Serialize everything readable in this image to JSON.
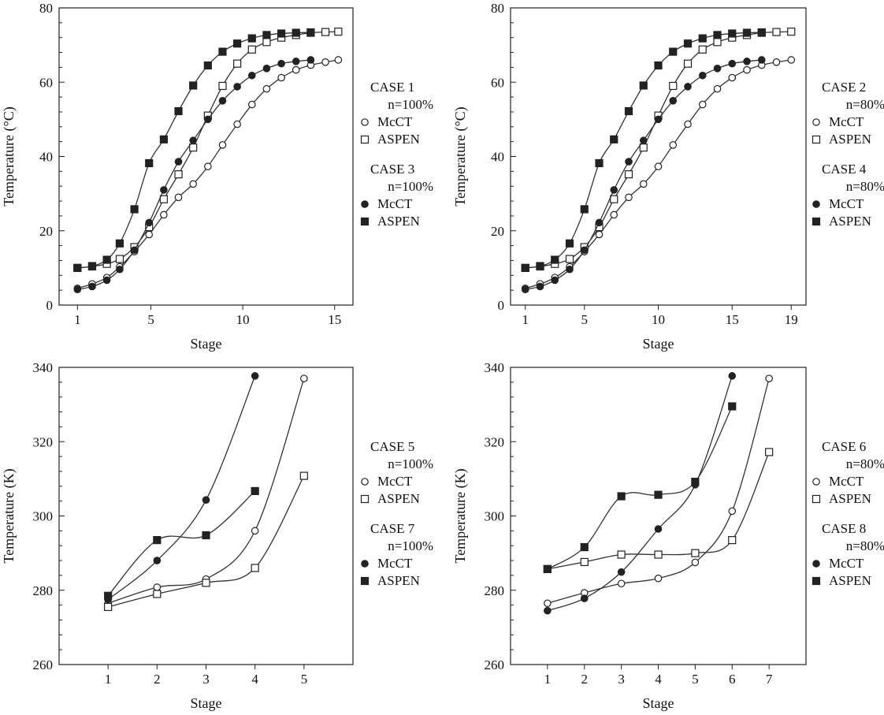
{
  "chart_data": [
    {
      "type": "line",
      "xlabel": "Stage",
      "ylabel": "Temperature (°C)",
      "xlim": [
        0,
        16
      ],
      "ylim": [
        0,
        80
      ],
      "xticks": [
        1,
        5,
        10,
        15
      ],
      "xticklabels": [
        "1",
        "5",
        "10",
        "15"
      ],
      "yticks": [
        0,
        20,
        40,
        60,
        80
      ],
      "yticklabels": [
        "0",
        "20",
        "40",
        "60",
        "80"
      ],
      "legend_groups": [
        {
          "title": "CASE 1",
          "sub": "n=100%",
          "entries": [
            {
              "label": "McCT",
              "marker": "open-circle"
            },
            {
              "label": "ASPEN",
              "marker": "open-square"
            }
          ]
        },
        {
          "title": "CASE 3",
          "sub": "n=100%",
          "entries": [
            {
              "label": "McCT",
              "marker": "filled-circle"
            },
            {
              "label": "ASPEN",
              "marker": "filled-square"
            }
          ]
        }
      ],
      "series": [
        {
          "name": "CASE 1 McCT",
          "marker": "open-circle",
          "x": [
            1,
            1.8,
            2.6,
            3.3,
            4.1,
            4.9,
            5.7,
            6.5,
            7.3,
            8.1,
            8.9,
            9.7,
            10.5,
            11.3,
            12.1,
            12.9,
            13.7,
            14.5,
            15.2
          ],
          "y": [
            4.5,
            5.7,
            7.4,
            10.3,
            14.4,
            19,
            24.3,
            29,
            32.6,
            37.3,
            43.1,
            48.7,
            54,
            58.2,
            61.2,
            63.3,
            64.6,
            65.4,
            66
          ]
        },
        {
          "name": "CASE 1 ASPEN",
          "marker": "open-square",
          "x": [
            1,
            1.8,
            2.6,
            3.3,
            4.1,
            4.9,
            5.7,
            6.5,
            7.3,
            8.1,
            8.9,
            9.7,
            10.5,
            11.3,
            12.1,
            12.9,
            13.7,
            14.5,
            15.2
          ],
          "y": [
            10,
            10.4,
            11.1,
            12.4,
            15.6,
            21,
            28.5,
            35.2,
            42.4,
            51,
            59,
            65,
            68.8,
            70.8,
            72,
            72.7,
            73.3,
            73.5,
            73.6
          ]
        },
        {
          "name": "CASE 3 McCT",
          "marker": "filled-circle",
          "x": [
            1,
            1.8,
            2.6,
            3.3,
            4.1,
            4.9,
            5.7,
            6.5,
            7.3,
            8.1,
            8.9,
            9.7,
            10.5,
            11.3,
            12.1,
            12.9,
            13.7
          ],
          "y": [
            4.2,
            5,
            6.7,
            9.6,
            14.8,
            22.2,
            31,
            38.6,
            44.3,
            50,
            55,
            58.8,
            61.8,
            63.7,
            65,
            65.6,
            66
          ]
        },
        {
          "name": "CASE 3 ASPEN",
          "marker": "filled-square",
          "x": [
            1,
            1.8,
            2.6,
            3.3,
            4.1,
            4.9,
            5.7,
            6.5,
            7.3,
            8.1,
            8.9,
            9.7,
            10.5,
            11.3,
            12.1,
            12.9,
            13.7
          ],
          "y": [
            10,
            10.5,
            12.2,
            16.6,
            25.8,
            38.2,
            44.6,
            52.2,
            59.1,
            64.5,
            68.2,
            70.4,
            71.8,
            72.7,
            73.1,
            73.3,
            73.4
          ]
        }
      ]
    },
    {
      "type": "line",
      "xlabel": "Stage",
      "ylabel": "Temperature (°C)",
      "xlim": [
        0,
        20
      ],
      "ylim": [
        0,
        80
      ],
      "xticks": [
        1,
        5,
        10,
        15,
        19
      ],
      "xticklabels": [
        "1",
        "5",
        "10",
        "15",
        "19"
      ],
      "yticks": [
        0,
        20,
        40,
        60,
        80
      ],
      "yticklabels": [
        "0",
        "20",
        "40",
        "60",
        "80"
      ],
      "legend_groups": [
        {
          "title": "CASE 2",
          "sub": "n=80%",
          "entries": [
            {
              "label": "McCT",
              "marker": "open-circle"
            },
            {
              "label": "ASPEN",
              "marker": "open-square"
            }
          ]
        },
        {
          "title": "CASE 4",
          "sub": "n=80%",
          "entries": [
            {
              "label": "McCT",
              "marker": "filled-circle"
            },
            {
              "label": "ASPEN",
              "marker": "filled-square"
            }
          ]
        }
      ],
      "series": [
        {
          "name": "CASE 2 McCT",
          "marker": "open-circle",
          "x": [
            1,
            2,
            3,
            4,
            5,
            6,
            7,
            8,
            9,
            10,
            11,
            12,
            13,
            14,
            15,
            16,
            17,
            18,
            19
          ],
          "y": [
            4.5,
            5.7,
            7.4,
            10.3,
            14.4,
            19,
            24.3,
            29,
            32.6,
            37.3,
            43.1,
            48.7,
            54,
            58.2,
            61.2,
            63.3,
            64.6,
            65.4,
            66
          ]
        },
        {
          "name": "CASE 2 ASPEN",
          "marker": "open-square",
          "x": [
            1,
            2,
            3,
            4,
            5,
            6,
            7,
            8,
            9,
            10,
            11,
            12,
            13,
            14,
            15,
            16,
            17,
            18,
            19
          ],
          "y": [
            10,
            10.4,
            11.1,
            12.4,
            15.6,
            21,
            28.5,
            35.2,
            42.4,
            51,
            59,
            65,
            68.8,
            70.8,
            72,
            72.7,
            73.3,
            73.5,
            73.6
          ]
        },
        {
          "name": "CASE 4 McCT",
          "marker": "filled-circle",
          "x": [
            1,
            2,
            3,
            4,
            5,
            6,
            7,
            8,
            9,
            10,
            11,
            12,
            13,
            14,
            15,
            16,
            17
          ],
          "y": [
            4.2,
            5,
            6.7,
            9.6,
            14.8,
            22.2,
            31,
            38.6,
            44.3,
            50,
            55,
            58.8,
            61.8,
            63.7,
            65,
            65.6,
            66
          ]
        },
        {
          "name": "CASE 4 ASPEN",
          "marker": "filled-square",
          "x": [
            1,
            2,
            3,
            4,
            5,
            6,
            7,
            8,
            9,
            10,
            11,
            12,
            13,
            14,
            15,
            16,
            17
          ],
          "y": [
            10,
            10.5,
            12.2,
            16.6,
            25.8,
            38.2,
            44.6,
            52.2,
            59.1,
            64.5,
            68.2,
            70.4,
            71.8,
            72.7,
            73.1,
            73.3,
            73.4
          ]
        }
      ]
    },
    {
      "type": "line",
      "xlabel": "Stage",
      "ylabel": "Temperature (K)",
      "xlim": [
        0,
        6
      ],
      "ylim": [
        260,
        340
      ],
      "xticks": [
        1,
        2,
        3,
        4,
        5
      ],
      "xticklabels": [
        "1",
        "2",
        "3",
        "4",
        "5"
      ],
      "yticks": [
        260,
        280,
        300,
        320,
        340
      ],
      "yticklabels": [
        "260",
        "280",
        "300",
        "320",
        "340"
      ],
      "legend_groups": [
        {
          "title": "CASE 5",
          "sub": "n=100%",
          "entries": [
            {
              "label": "McCT",
              "marker": "open-circle"
            },
            {
              "label": "ASPEN",
              "marker": "open-square"
            }
          ]
        },
        {
          "title": "CASE 7",
          "sub": "n=100%",
          "entries": [
            {
              "label": "McCT",
              "marker": "filled-circle"
            },
            {
              "label": "ASPEN",
              "marker": "filled-square"
            }
          ]
        }
      ],
      "series": [
        {
          "name": "CASE 5 McCT",
          "marker": "open-circle",
          "x": [
            1,
            2,
            3,
            4,
            5
          ],
          "y": [
            276.5,
            280.8,
            283,
            296,
            337
          ]
        },
        {
          "name": "CASE 5 ASPEN",
          "marker": "open-square",
          "x": [
            1,
            2,
            3,
            4,
            5
          ],
          "y": [
            275.5,
            279,
            282,
            286,
            310.8
          ]
        },
        {
          "name": "CASE 7 McCT",
          "marker": "filled-circle",
          "x": [
            1,
            2,
            3,
            4
          ],
          "y": [
            277.5,
            288,
            304.3,
            337.7
          ]
        },
        {
          "name": "CASE 7 ASPEN",
          "marker": "filled-square",
          "x": [
            1,
            2,
            3,
            4
          ],
          "y": [
            278.5,
            293.5,
            294.8,
            306.7
          ]
        }
      ]
    },
    {
      "type": "line",
      "xlabel": "Stage",
      "ylabel": "Temperature (K)",
      "xlim": [
        0,
        8
      ],
      "ylim": [
        260,
        340
      ],
      "xticks": [
        1,
        2,
        3,
        4,
        5,
        6,
        7
      ],
      "xticklabels": [
        "1",
        "2",
        "3",
        "4",
        "5",
        "6",
        "7"
      ],
      "yticks": [
        260,
        280,
        300,
        320,
        340
      ],
      "yticklabels": [
        "260",
        "280",
        "300",
        "320",
        "340"
      ],
      "legend_groups": [
        {
          "title": "CASE 6",
          "sub": "n=80%",
          "entries": [
            {
              "label": "McCT",
              "marker": "open-circle"
            },
            {
              "label": "ASPEN",
              "marker": "open-square"
            }
          ]
        },
        {
          "title": "CASE 8",
          "sub": "n=80%",
          "entries": [
            {
              "label": "McCT",
              "marker": "filled-circle"
            },
            {
              "label": "ASPEN",
              "marker": "filled-square"
            }
          ]
        }
      ],
      "series": [
        {
          "name": "CASE 6 McCT",
          "marker": "open-circle",
          "x": [
            1,
            2,
            3,
            4,
            5,
            6,
            7
          ],
          "y": [
            276.5,
            279.3,
            281.8,
            283.2,
            287.5,
            301.3,
            337
          ]
        },
        {
          "name": "CASE 6 ASPEN",
          "marker": "open-square",
          "x": [
            1,
            2,
            3,
            4,
            5,
            6,
            7
          ],
          "y": [
            285.7,
            287.6,
            289.6,
            289.6,
            290,
            293.5,
            317.2
          ]
        },
        {
          "name": "CASE 8 McCT",
          "marker": "filled-circle",
          "x": [
            1,
            2,
            3,
            4,
            5,
            6
          ],
          "y": [
            274.5,
            277.8,
            284.9,
            296.5,
            308.4,
            337.7
          ]
        },
        {
          "name": "CASE 8 ASPEN",
          "marker": "filled-square",
          "x": [
            1,
            2,
            3,
            4,
            5,
            6
          ],
          "y": [
            285.7,
            291.6,
            305.3,
            305.7,
            309.2,
            329.5
          ]
        }
      ]
    }
  ]
}
